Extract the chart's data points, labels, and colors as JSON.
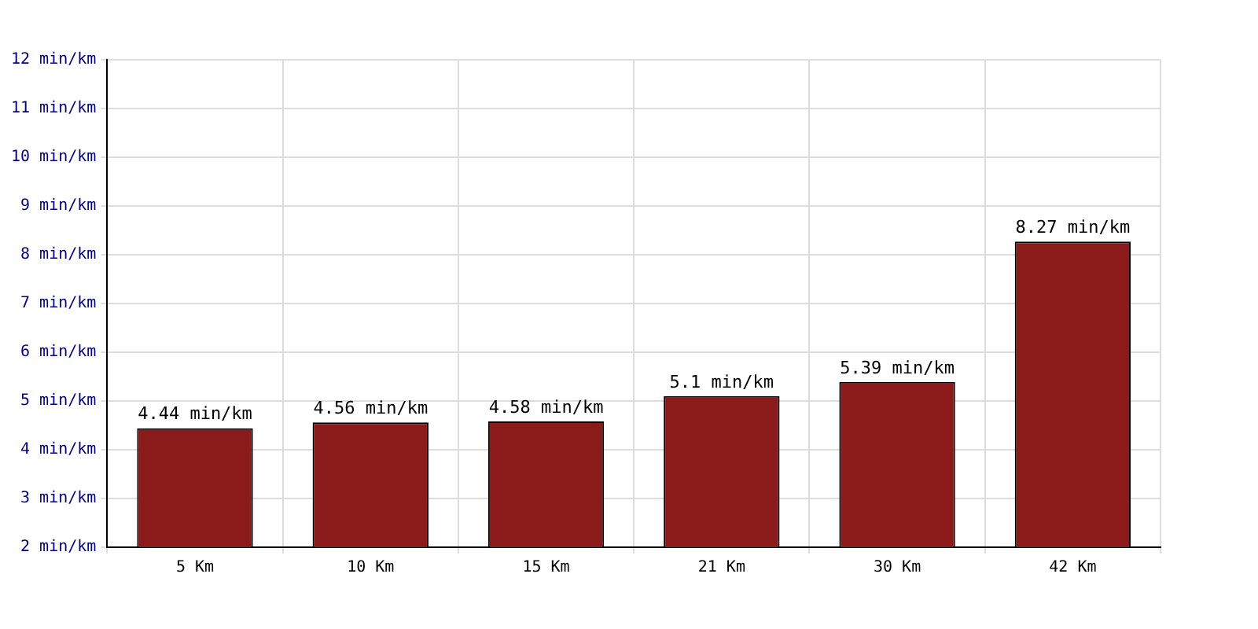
{
  "chart_data": {
    "type": "bar",
    "categories": [
      "5 Km",
      "10 Km",
      "15 Km",
      "21 Km",
      "30 Km",
      "42 Km"
    ],
    "values": [
      4.44,
      4.56,
      4.58,
      5.1,
      5.39,
      8.27
    ],
    "value_labels": [
      "4.44 min/km",
      "4.56 min/km",
      "4.58 min/km",
      "5.1 min/km",
      "5.39 min/km",
      "8.27 min/km"
    ],
    "color": "#8b1a1a",
    "ylim": [
      2,
      12
    ],
    "yticks": [
      {
        "value": 2,
        "label": "2 min/km"
      },
      {
        "value": 3,
        "label": "3 min/km"
      },
      {
        "value": 4,
        "label": "4 min/km"
      },
      {
        "value": 5,
        "label": "5 min/km"
      },
      {
        "value": 6,
        "label": "6 min/km"
      },
      {
        "value": 7,
        "label": "7 min/km"
      },
      {
        "value": 8,
        "label": "8 min/km"
      },
      {
        "value": 9,
        "label": "9 min/km"
      },
      {
        "value": 10,
        "label": "10 min/km"
      },
      {
        "value": 11,
        "label": "11 min/km"
      },
      {
        "value": 12,
        "label": "12 min/km"
      }
    ],
    "grid": true,
    "legend": false
  }
}
